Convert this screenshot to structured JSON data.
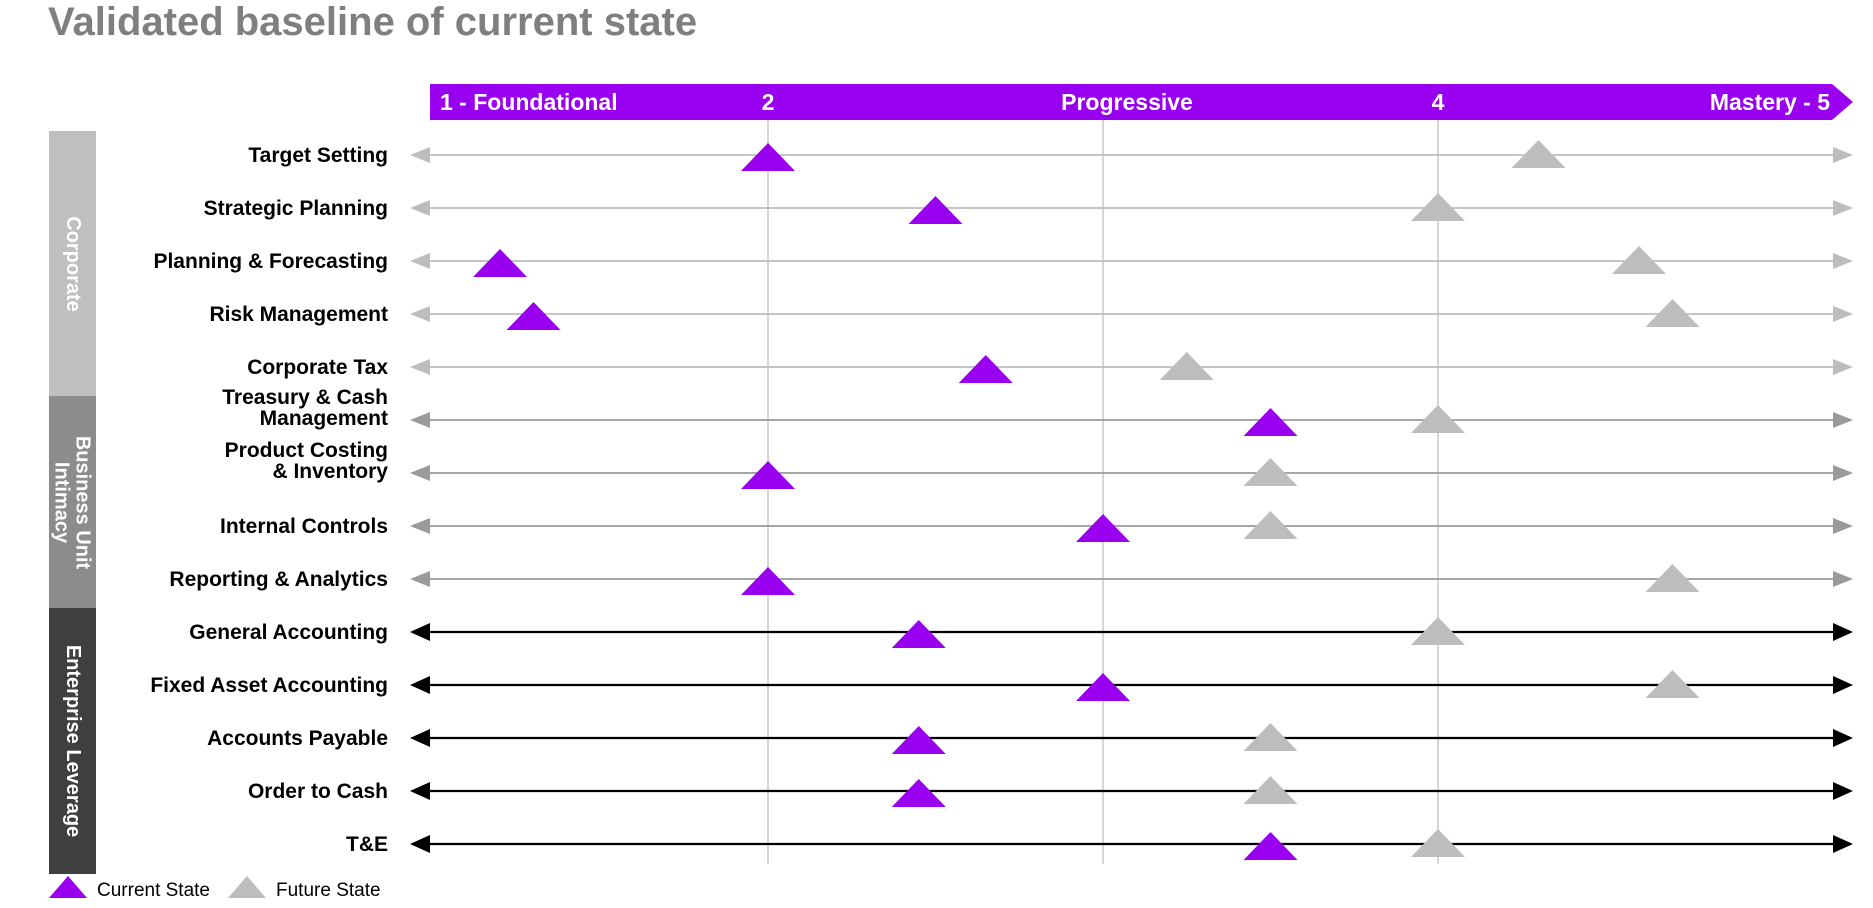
{
  "title": "Validated baseline of current state",
  "colors": {
    "current": "#9a00f0",
    "future": "#bdbdbd",
    "header": "#9a00f0",
    "gridline": "#d6d6d6",
    "groups": [
      "#bfbfbf",
      "#8c8c8c",
      "#3f3f3f"
    ],
    "axis_styles": [
      "#bdbdbd",
      "#9a9a9a",
      "#000000"
    ]
  },
  "icons": {
    "current_marker": "triangle-purple-icon",
    "future_marker": "triangle-gray-icon",
    "axis_ends": "arrowhead-icon"
  },
  "legend": [
    {
      "label": "Current State",
      "series": "current"
    },
    {
      "label": "Future State",
      "series": "future"
    }
  ],
  "chart_data": {
    "type": "scatter",
    "title": "Validated baseline of current state",
    "x_scale": {
      "range": [
        1,
        5
      ],
      "tick_labels": [
        "1 - Foundational",
        "2",
        "Progressive",
        "4",
        "Mastery - 5"
      ],
      "tick_values": [
        1,
        2,
        3,
        4,
        5
      ]
    },
    "groups": [
      {
        "name": "Corporate",
        "axis_style": 0,
        "rows": [
          0,
          1,
          2,
          3,
          4
        ]
      },
      {
        "name": "Business Unit Intimacy",
        "axis_style": 1,
        "rows": [
          5,
          6,
          7,
          8
        ]
      },
      {
        "name": "Enterprise Leverage",
        "axis_style": 2,
        "rows": [
          9,
          10,
          11,
          12,
          13
        ]
      }
    ],
    "categories": [
      [
        "Target Setting"
      ],
      [
        "Strategic Planning"
      ],
      [
        "Planning & Forecasting"
      ],
      [
        "Risk Management"
      ],
      [
        "Corporate Tax"
      ],
      [
        "Treasury & Cash",
        "Management"
      ],
      [
        "Product Costing",
        "& Inventory"
      ],
      [
        "Internal Controls"
      ],
      [
        "Reporting & Analytics"
      ],
      [
        "General Accounting"
      ],
      [
        "Fixed Asset Accounting"
      ],
      [
        "Accounts Payable"
      ],
      [
        "Order to Cash"
      ],
      [
        "T&E"
      ]
    ],
    "series": [
      {
        "name": "Current State",
        "key": "current",
        "values": [
          2.0,
          2.5,
          1.2,
          1.3,
          2.65,
          3.5,
          2.0,
          3.0,
          2.0,
          2.45,
          3.0,
          2.45,
          2.45,
          3.5
        ]
      },
      {
        "name": "Future State",
        "key": "future",
        "values": [
          4.3,
          4.0,
          4.6,
          4.7,
          3.25,
          4.0,
          3.5,
          3.5,
          4.7,
          4.0,
          4.7,
          3.5,
          3.5,
          4.0
        ]
      }
    ],
    "grid": true,
    "legend_position": "bottom-left"
  }
}
